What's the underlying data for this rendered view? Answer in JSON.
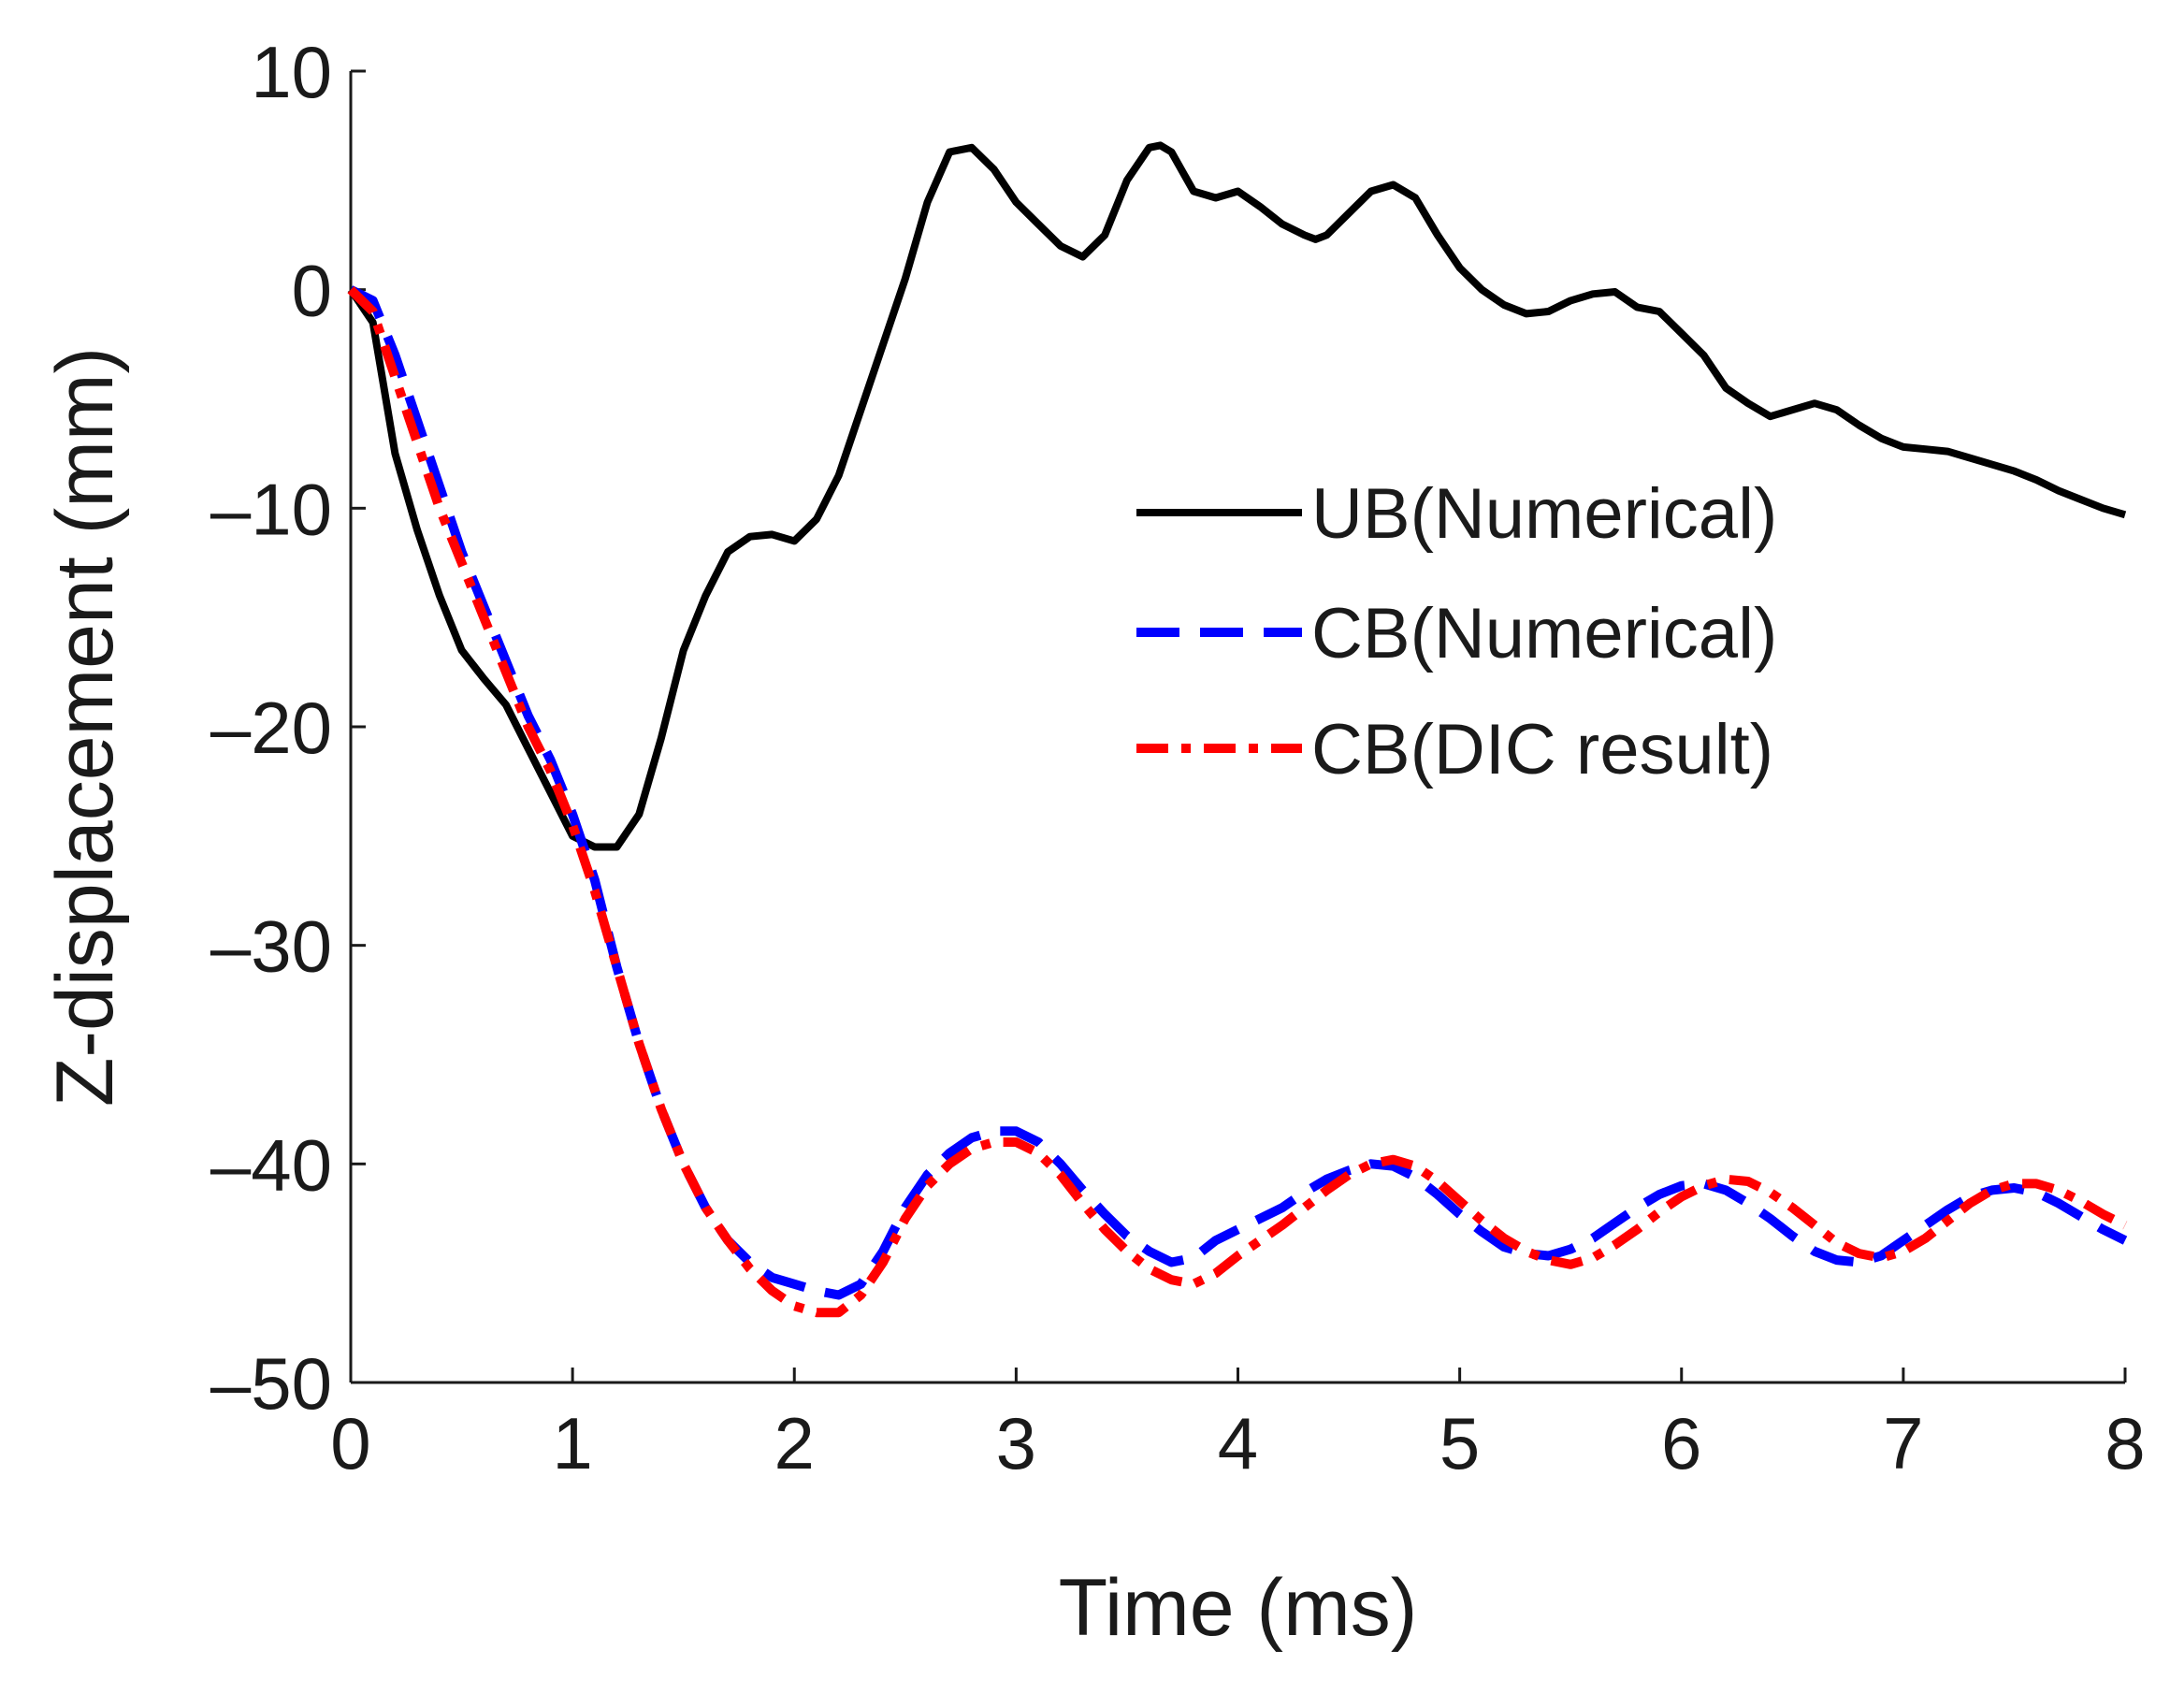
{
  "chart_data": {
    "type": "line",
    "title": "",
    "xlabel": "Time (ms)",
    "ylabel": "Z-displacement (mm)",
    "xlim": [
      0,
      8
    ],
    "ylim": [
      -50,
      10
    ],
    "xticks": [
      0,
      1,
      2,
      3,
      4,
      5,
      6,
      7,
      8
    ],
    "yticks": [
      10,
      0,
      -10,
      -20,
      -30,
      -40,
      -50
    ],
    "grid": false,
    "legend_position": "top-right",
    "series": [
      {
        "name": "UB(Numerical)",
        "color": "#000000",
        "style": "solid",
        "x": [
          0,
          0.1,
          0.2,
          0.3,
          0.4,
          0.5,
          0.6,
          0.7,
          0.8,
          0.9,
          1.0,
          1.1,
          1.2,
          1.3,
          1.4,
          1.5,
          1.6,
          1.7,
          1.8,
          1.9,
          2.0,
          2.1,
          2.2,
          2.3,
          2.4,
          2.5,
          2.6,
          2.7,
          2.8,
          2.9,
          3.0,
          3.1,
          3.2,
          3.3,
          3.4,
          3.5,
          3.6,
          3.65,
          3.7,
          3.8,
          3.9,
          4.0,
          4.1,
          4.2,
          4.3,
          4.35,
          4.4,
          4.5,
          4.6,
          4.7,
          4.8,
          4.9,
          5.0,
          5.1,
          5.2,
          5.3,
          5.4,
          5.5,
          5.6,
          5.7,
          5.8,
          5.9,
          6.0,
          6.1,
          6.2,
          6.3,
          6.4,
          6.5,
          6.6,
          6.7,
          6.8,
          6.9,
          7.0,
          7.1,
          7.2,
          7.3,
          7.4,
          7.5,
          7.6,
          7.7,
          7.8,
          7.9,
          8.0
        ],
        "values": [
          0,
          -1.5,
          -7.5,
          -11,
          -14,
          -16.5,
          -17.8,
          -19,
          -21,
          -23,
          -25,
          -25.5,
          -25.5,
          -24,
          -20.5,
          -16.5,
          -14,
          -12,
          -11.3,
          -11.2,
          -11.5,
          -10.5,
          -8.5,
          -5.5,
          -2.5,
          0.5,
          4,
          6.3,
          6.5,
          5.5,
          4,
          3,
          2,
          1.5,
          2.5,
          5,
          6.5,
          6.6,
          6.3,
          4.5,
          4.2,
          4.5,
          3.8,
          3,
          2.5,
          2.3,
          2.5,
          3.5,
          4.5,
          4.8,
          4.2,
          2.5,
          1,
          0,
          -0.7,
          -1.1,
          -1,
          -0.5,
          -0.2,
          -0.1,
          -0.8,
          -1,
          -2,
          -3,
          -4.5,
          -5.2,
          -5.8,
          -5.5,
          -5.2,
          -5.5,
          -6.2,
          -6.8,
          -7.2,
          -7.3,
          -7.4,
          -7.7,
          -8,
          -8.3,
          -8.7,
          -9.2,
          -9.6,
          -10,
          -10.3
        ]
      },
      {
        "name": "CB(Numerical)",
        "color": "#0000ff",
        "style": "dashed",
        "x": [
          0,
          0.1,
          0.2,
          0.3,
          0.4,
          0.5,
          0.6,
          0.7,
          0.8,
          0.9,
          1.0,
          1.1,
          1.2,
          1.3,
          1.4,
          1.5,
          1.6,
          1.7,
          1.8,
          1.9,
          2.0,
          2.1,
          2.2,
          2.3,
          2.4,
          2.5,
          2.6,
          2.7,
          2.8,
          2.9,
          3.0,
          3.1,
          3.2,
          3.3,
          3.4,
          3.5,
          3.6,
          3.7,
          3.8,
          3.9,
          4.0,
          4.1,
          4.2,
          4.3,
          4.4,
          4.5,
          4.6,
          4.7,
          4.8,
          4.9,
          5.0,
          5.1,
          5.2,
          5.3,
          5.4,
          5.5,
          5.6,
          5.7,
          5.8,
          5.9,
          6.0,
          6.1,
          6.2,
          6.3,
          6.4,
          6.5,
          6.6,
          6.7,
          6.8,
          6.9,
          7.0,
          7.1,
          7.2,
          7.3,
          7.4,
          7.5,
          7.6,
          7.7,
          7.8,
          7.9,
          8.0
        ],
        "values": [
          0,
          -0.5,
          -3,
          -6,
          -9,
          -12,
          -14.5,
          -17,
          -19.5,
          -21.5,
          -24,
          -27,
          -31,
          -34.5,
          -37.5,
          -40,
          -42,
          -43.5,
          -44.5,
          -45.2,
          -45.5,
          -45.8,
          -46,
          -45.5,
          -44,
          -42,
          -40.5,
          -39.5,
          -38.8,
          -38.5,
          -38.5,
          -39,
          -40,
          -41.2,
          -42.3,
          -43.3,
          -44,
          -44.5,
          -44.3,
          -43.5,
          -43,
          -42.5,
          -42,
          -41.3,
          -40.7,
          -40.3,
          -40,
          -40.1,
          -40.6,
          -41.4,
          -42.3,
          -43.1,
          -43.8,
          -44.1,
          -44.2,
          -43.9,
          -43.4,
          -42.7,
          -42,
          -41.4,
          -41,
          -40.9,
          -41.2,
          -41.8,
          -42.5,
          -43.3,
          -44,
          -44.4,
          -44.5,
          -44.2,
          -43.5,
          -42.8,
          -42.1,
          -41.5,
          -41.2,
          -41.1,
          -41.3,
          -41.8,
          -42.4,
          -43,
          -43.5
        ]
      },
      {
        "name": "CB(DIC result)",
        "color": "#ff0000",
        "style": "dash-dot",
        "x": [
          0,
          0.1,
          0.2,
          0.3,
          0.4,
          0.5,
          0.6,
          0.7,
          0.8,
          0.9,
          1.0,
          1.1,
          1.2,
          1.3,
          1.4,
          1.5,
          1.6,
          1.7,
          1.8,
          1.9,
          2.0,
          2.1,
          2.2,
          2.3,
          2.4,
          2.5,
          2.6,
          2.7,
          2.8,
          2.9,
          3.0,
          3.1,
          3.2,
          3.3,
          3.4,
          3.5,
          3.6,
          3.7,
          3.8,
          3.9,
          4.0,
          4.1,
          4.2,
          4.3,
          4.4,
          4.5,
          4.6,
          4.7,
          4.8,
          4.9,
          5.0,
          5.1,
          5.2,
          5.3,
          5.4,
          5.5,
          5.6,
          5.7,
          5.8,
          5.9,
          6.0,
          6.1,
          6.2,
          6.3,
          6.4,
          6.5,
          6.6,
          6.7,
          6.8,
          6.9,
          7.0,
          7.1,
          7.2,
          7.3,
          7.4,
          7.5,
          7.6,
          7.7,
          7.8,
          7.9,
          8.0
        ],
        "values": [
          0,
          -1,
          -4,
          -7,
          -10,
          -12.5,
          -15,
          -17.5,
          -20,
          -22,
          -24.5,
          -27.5,
          -31,
          -34.5,
          -37.5,
          -40,
          -42,
          -43.5,
          -44.8,
          -45.8,
          -46.5,
          -46.8,
          -46.8,
          -46,
          -44.5,
          -42.5,
          -41,
          -40,
          -39.3,
          -39,
          -39,
          -39.5,
          -40.5,
          -41.8,
          -43,
          -44,
          -44.8,
          -45.3,
          -45.5,
          -45,
          -44.2,
          -43.5,
          -42.8,
          -42,
          -41.2,
          -40.5,
          -40,
          -39.8,
          -40.1,
          -40.8,
          -41.7,
          -42.6,
          -43.4,
          -44,
          -44.4,
          -44.6,
          -44.3,
          -43.7,
          -43,
          -42.2,
          -41.5,
          -41,
          -40.7,
          -40.8,
          -41.3,
          -42,
          -42.8,
          -43.6,
          -44.1,
          -44.3,
          -44,
          -43.4,
          -42.6,
          -41.8,
          -41.2,
          -40.9,
          -40.9,
          -41.2,
          -41.7,
          -42.3,
          -42.8
        ]
      }
    ]
  }
}
